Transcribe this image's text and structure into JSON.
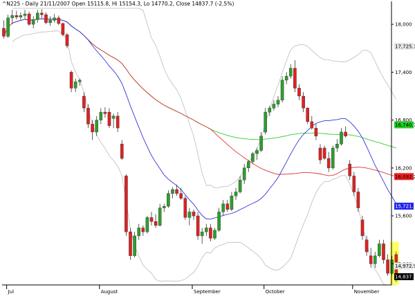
{
  "chart_data": {
    "type": "candlestick",
    "title": "^N225 - Daily 21/11/2007 Open 15115.8, Hi 15154.3, Lo 14770.2, Close 14837.7 (-2.5%)",
    "ylim": [
      14735,
      18200
    ],
    "y_ticks": [
      {
        "value": 18000,
        "label": "18,000"
      },
      {
        "value": 17400,
        "label": "17,400"
      },
      {
        "value": 16800,
        "label": "16,800"
      },
      {
        "value": 16200,
        "label": "16,200"
      },
      {
        "value": 15600,
        "label": "15,600"
      },
      {
        "value": 15000,
        "label": "15,000"
      }
    ],
    "x_ticks": [
      {
        "index": 1,
        "label": "Jul"
      },
      {
        "index": 23,
        "label": "August"
      },
      {
        "index": 45,
        "label": "September"
      },
      {
        "index": 62,
        "label": "October"
      },
      {
        "index": 83,
        "label": "November"
      }
    ],
    "price_tags": [
      {
        "value": 17725.1,
        "label": "17,725.1",
        "bg": "#e6e6e6",
        "fg": "#000000"
      },
      {
        "value": 16740.7,
        "label": "16,740.7",
        "bg": "#22cc22",
        "fg": "#000000"
      },
      {
        "value": 16092.2,
        "label": "16,092.2",
        "bg": "#ee2222",
        "fg": "#000000"
      },
      {
        "value": 15721.9,
        "label": "15,721.9",
        "bg": "#2222ee",
        "fg": "#ffffff"
      },
      {
        "value": 14972.9,
        "label": "14,972.9",
        "bg": "#e6e6e6",
        "fg": "#000000"
      },
      {
        "value": 14837.7,
        "label": "14,837.7",
        "bg": "#000000",
        "fg": "#ffffff"
      }
    ],
    "colors": {
      "up": "#2e9e2e",
      "down": "#dd2222",
      "ma_fast": "#3333dd",
      "ma_mid": "#dd3333",
      "ma_slow": "#33cc33",
      "bollinger": "#bbbbbb",
      "highlight": "#ffff66"
    },
    "highlight_last": true,
    "candles": [
      [
        17950,
        18050,
        17820,
        17850
      ],
      [
        17850,
        18120,
        17830,
        18080
      ],
      [
        18080,
        18180,
        18000,
        18110
      ],
      [
        18110,
        18170,
        18060,
        18090
      ],
      [
        18090,
        18150,
        18050,
        18110
      ],
      [
        18110,
        18180,
        18070,
        18130
      ],
      [
        18130,
        18160,
        17980,
        18000
      ],
      [
        18000,
        18100,
        17950,
        18060
      ],
      [
        18060,
        18180,
        18020,
        18140
      ],
      [
        18140,
        18190,
        18080,
        18120
      ],
      [
        18120,
        18150,
        18000,
        18020
      ],
      [
        18020,
        18100,
        17980,
        18050
      ],
      [
        18050,
        18130,
        18020,
        18080
      ],
      [
        18080,
        18110,
        17990,
        18010
      ],
      [
        18010,
        18020,
        17850,
        17870
      ],
      [
        17870,
        17890,
        17700,
        17730
      ],
      [
        17400,
        17420,
        17150,
        17200
      ],
      [
        17200,
        17320,
        17150,
        17280
      ],
      [
        17280,
        17320,
        17230,
        17300
      ],
      [
        17100,
        17150,
        16900,
        16950
      ],
      [
        16950,
        17000,
        16700,
        16750
      ],
      [
        16750,
        16800,
        16550,
        16650
      ],
      [
        16650,
        16850,
        16600,
        16800
      ],
      [
        16800,
        16950,
        16750,
        16900
      ],
      [
        16900,
        16960,
        16830,
        16880
      ],
      [
        16900,
        16950,
        16700,
        16730
      ],
      [
        16820,
        16880,
        16700,
        16850
      ],
      [
        16850,
        16900,
        16650,
        16700
      ],
      [
        16500,
        16550,
        16300,
        16320
      ],
      [
        16100,
        16120,
        15350,
        15400
      ],
      [
        15400,
        15450,
        15050,
        15100
      ],
      [
        15100,
        15400,
        15080,
        15350
      ],
      [
        15350,
        15500,
        15300,
        15450
      ],
      [
        15450,
        15480,
        15350,
        15400
      ],
      [
        15400,
        15600,
        15380,
        15580
      ],
      [
        15580,
        15650,
        15480,
        15530
      ],
      [
        15530,
        15620,
        15450,
        15480
      ],
      [
        15480,
        15750,
        15470,
        15700
      ],
      [
        15700,
        15750,
        15650,
        15720
      ],
      [
        15720,
        15920,
        15700,
        15880
      ],
      [
        15880,
        15960,
        15820,
        15930
      ],
      [
        15930,
        15990,
        15850,
        15880
      ],
      [
        15880,
        15950,
        15800,
        15820
      ],
      [
        15820,
        15850,
        15550,
        15580
      ],
      [
        15580,
        15700,
        15480,
        15650
      ],
      [
        15650,
        15680,
        15550,
        15600
      ],
      [
        15600,
        15650,
        15300,
        15350
      ],
      [
        15350,
        15450,
        15250,
        15400
      ],
      [
        15400,
        15500,
        15350,
        15450
      ],
      [
        15450,
        15500,
        15280,
        15320
      ],
      [
        15320,
        15450,
        15300,
        15420
      ],
      [
        15420,
        15700,
        15400,
        15650
      ],
      [
        15650,
        15800,
        15600,
        15750
      ],
      [
        15750,
        15800,
        15650,
        15680
      ],
      [
        15680,
        15900,
        15660,
        15850
      ],
      [
        15850,
        15950,
        15800,
        15900
      ],
      [
        15900,
        16100,
        15880,
        16050
      ],
      [
        16050,
        16250,
        16000,
        16200
      ],
      [
        16200,
        16300,
        16150,
        16280
      ],
      [
        16280,
        16400,
        16250,
        16380
      ],
      [
        16380,
        16450,
        16300,
        16420
      ],
      [
        16420,
        16650,
        16400,
        16600
      ],
      [
        16650,
        16950,
        16620,
        16900
      ],
      [
        16900,
        16980,
        16850,
        16950
      ],
      [
        16950,
        17050,
        16920,
        17000
      ],
      [
        17000,
        17100,
        16960,
        17050
      ],
      [
        17050,
        17350,
        17020,
        17300
      ],
      [
        17300,
        17400,
        17250,
        17350
      ],
      [
        17350,
        17500,
        17320,
        17450
      ],
      [
        17450,
        17550,
        17150,
        17200
      ],
      [
        17200,
        17250,
        17050,
        17100
      ],
      [
        17100,
        17150,
        16900,
        16950
      ],
      [
        16950,
        16960,
        16750,
        16780
      ],
      [
        16780,
        16850,
        16680,
        16700
      ],
      [
        16700,
        16750,
        16550,
        16600
      ],
      [
        16450,
        16500,
        16250,
        16300
      ],
      [
        16450,
        16480,
        16300,
        16320
      ],
      [
        16320,
        16400,
        16150,
        16200
      ],
      [
        16200,
        16480,
        16180,
        16450
      ],
      [
        16450,
        16560,
        16400,
        16500
      ],
      [
        16500,
        16700,
        16480,
        16650
      ],
      [
        16650,
        16720,
        16580,
        16600
      ],
      [
        16250,
        16300,
        16050,
        16100
      ],
      [
        16100,
        16150,
        15850,
        15900
      ],
      [
        15900,
        15950,
        15650,
        15700
      ],
      [
        15550,
        15600,
        15300,
        15350
      ],
      [
        15300,
        15350,
        15100,
        15150
      ],
      [
        15100,
        15200,
        14950,
        15000
      ],
      [
        15000,
        15150,
        14950,
        15100
      ],
      [
        15100,
        15300,
        15080,
        15250
      ],
      [
        15250,
        15300,
        15000,
        15050
      ],
      [
        15050,
        15120,
        14850,
        14880
      ],
      [
        14880,
        15100,
        14860,
        15050
      ],
      [
        15115.8,
        15154.3,
        14770.2,
        14837.7
      ]
    ]
  }
}
